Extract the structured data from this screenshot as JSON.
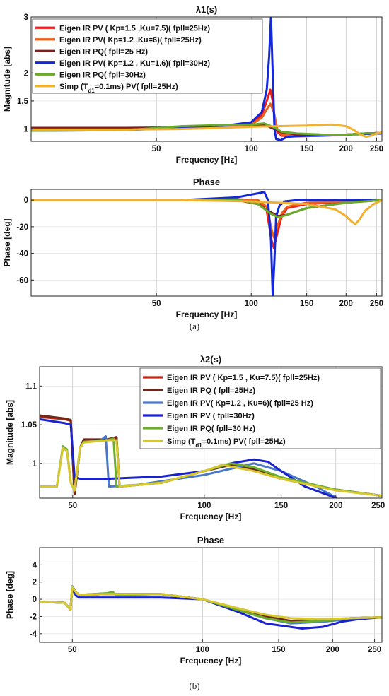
{
  "captions": {
    "a": "(a)",
    "b": "(b)"
  },
  "chart_data": [
    {
      "type": "line",
      "title": "λ1(s)",
      "xlabel": "Frequency [Hz]",
      "ylabel": "Magnitude [abs]",
      "xscale": "log",
      "xlim": [
        20,
        260
      ],
      "ylim": [
        0.78,
        3
      ],
      "xticks": [
        50,
        100,
        150,
        200,
        250
      ],
      "yticks": [
        1,
        1.5,
        2,
        3
      ],
      "yticklabels": [
        "1",
        "1.5",
        "2",
        "3"
      ],
      "legend_position": "top-left",
      "series": [
        {
          "name": "Eigen IR PV ( Kp=1.5 ,Ku=7.5)( fpll=25Hz)",
          "color": "#ee1c1c",
          "x": [
            20,
            40,
            60,
            80,
            100,
            108,
            112,
            115,
            117,
            119,
            121,
            125,
            140,
            170,
            200,
            230,
            260
          ],
          "y": [
            1.0,
            1.0,
            1.03,
            1.05,
            1.1,
            1.25,
            1.5,
            1.7,
            1.5,
            1.1,
            0.95,
            0.88,
            0.87,
            0.88,
            0.9,
            0.92,
            0.93
          ]
        },
        {
          "name": "Eigen IR PV( Kp=1.2 ,Ku=6)( fpll=25Hz)",
          "color": "#e8601c",
          "x": [
            20,
            40,
            60,
            80,
            100,
            108,
            112,
            115,
            118,
            121,
            125,
            140,
            170,
            200,
            230,
            260
          ],
          "y": [
            1.0,
            1.0,
            1.02,
            1.05,
            1.08,
            1.2,
            1.35,
            1.45,
            1.3,
            1.0,
            0.9,
            0.87,
            0.88,
            0.9,
            0.92,
            0.93
          ]
        },
        {
          "name": "Eigen IR PQ( fpll=25 Hz)",
          "color": "#8b1a1a",
          "x": [
            20,
            40,
            60,
            80,
            100,
            110,
            118,
            125,
            140,
            170,
            200,
            230,
            260
          ],
          "y": [
            1.02,
            1.02,
            1.03,
            1.04,
            1.06,
            1.08,
            1.0,
            0.94,
            0.9,
            0.89,
            0.9,
            0.92,
            0.93
          ]
        },
        {
          "name": "Eigen  IR  PV( Kp=1.2 , Ku=1.6)( fpll=30Hz)",
          "color": "#1428d8",
          "x": [
            20,
            40,
            60,
            80,
            100,
            108,
            112,
            114,
            115.5,
            117,
            118.5,
            120,
            124,
            130,
            150,
            200,
            260
          ],
          "y": [
            0.97,
            0.98,
            1.02,
            1.05,
            1.12,
            1.3,
            1.7,
            2.3,
            3.0,
            2.0,
            1.0,
            0.82,
            0.8,
            0.86,
            0.88,
            0.9,
            0.92
          ]
        },
        {
          "name": "Eigen  IR  PQ( fpll=30Hz)",
          "color": "#6aaa2a",
          "x": [
            20,
            40,
            60,
            80,
            100,
            110,
            118,
            125,
            140,
            170,
            200,
            230,
            260
          ],
          "y": [
            0.97,
            0.98,
            1.05,
            1.07,
            1.08,
            1.1,
            1.03,
            0.95,
            0.92,
            0.9,
            0.9,
            0.92,
            0.93
          ]
        },
        {
          "name": "Simp (T_d1=0.1ms) PV( fpll=25Hz)",
          "color": "#f0b030",
          "x": [
            20,
            40,
            60,
            80,
            100,
            120,
            150,
            180,
            200,
            212,
            222,
            232,
            240,
            250,
            260
          ],
          "y": [
            0.99,
            0.99,
            1.0,
            1.02,
            1.04,
            1.05,
            1.06,
            1.08,
            1.05,
            0.98,
            0.9,
            0.86,
            0.88,
            0.92,
            0.94
          ]
        }
      ]
    },
    {
      "type": "line",
      "title": "Phase",
      "xlabel": "Frequency [Hz]",
      "ylabel": "Phase [deg]",
      "xscale": "log",
      "xlim": [
        20,
        260
      ],
      "ylim": [
        -72,
        8
      ],
      "xticks": [
        50,
        100,
        150,
        200,
        250
      ],
      "yticks": [
        0,
        -20,
        -40,
        -60
      ],
      "series": [
        {
          "name": "Eigen IR PV ( Kp=1.5 ,Ku=7.5)( fpll=25Hz)",
          "color": "#ee1c1c",
          "x": [
            20,
            60,
            90,
            105,
            112,
            116,
            118,
            121,
            125,
            130,
            150,
            200,
            260
          ],
          "y": [
            0,
            0,
            0.5,
            0,
            -8,
            -30,
            -36,
            -25,
            -12,
            -6,
            -3,
            -1,
            0
          ]
        },
        {
          "name": "Eigen IR PV( Kp=1.2 ,Ku=6)( fpll=25Hz)",
          "color": "#e8601c",
          "x": [
            20,
            60,
            90,
            105,
            112,
            116,
            118,
            121,
            125,
            130,
            150,
            200,
            260
          ],
          "y": [
            0,
            0,
            0.5,
            0,
            -5,
            -22,
            -28,
            -20,
            -10,
            -5,
            -2,
            -1,
            0
          ]
        },
        {
          "name": "Eigen IR PQ( fpll=25 Hz)",
          "color": "#8b1a1a",
          "x": [
            20,
            60,
            90,
            105,
            115,
            122,
            130,
            150,
            200,
            260
          ],
          "y": [
            0,
            0,
            0,
            -3,
            -9,
            -12,
            -11,
            -6,
            -2,
            0
          ]
        },
        {
          "name": "Eigen  IR  PV( Kp=1.2 , Ku=1.6)( fpll=30Hz)",
          "color": "#1428d8",
          "x": [
            20,
            60,
            90,
            105,
            110,
            113,
            115.5,
            117,
            118.5,
            120,
            123,
            128,
            140,
            200,
            260
          ],
          "y": [
            0,
            0,
            2,
            5,
            6,
            0,
            -30,
            -72,
            -45,
            -12,
            -4,
            -1,
            0,
            0,
            0
          ]
        },
        {
          "name": "Eigen  IR  PQ( fpll=30Hz)",
          "color": "#6aaa2a",
          "x": [
            20,
            60,
            90,
            105,
            115,
            122,
            130,
            150,
            200,
            260
          ],
          "y": [
            0,
            0,
            0.5,
            -3,
            -10,
            -13,
            -11,
            -6,
            -2,
            0
          ]
        },
        {
          "name": "Simp (T_d1=0.1ms) PV( fpll=25Hz)",
          "color": "#f0b030",
          "x": [
            20,
            60,
            100,
            150,
            185,
            200,
            208,
            214,
            220,
            230,
            245,
            260
          ],
          "y": [
            0,
            0,
            -1,
            -3,
            -7,
            -12,
            -16,
            -18,
            -15,
            -8,
            -3,
            0
          ]
        }
      ]
    },
    {
      "type": "line",
      "title": "λ2(s)",
      "xlabel": "Frequency [Hz]",
      "ylabel": "Magnitude [abs]",
      "xscale": "log",
      "xlim": [
        42,
        255
      ],
      "ylim": [
        0.955,
        1.125
      ],
      "xticks": [
        50,
        100,
        150,
        200,
        250
      ],
      "yticks": [
        1,
        1.05,
        1.1
      ],
      "yticklabels": [
        "1",
        "1.05",
        "1.1"
      ],
      "legend_position": "top-right",
      "series": [
        {
          "name": "Eigen  IR PV ( Kp=1.5 , Ku=7.5)( fpll=25Hz)",
          "color": "#c0281c",
          "x": [
            42,
            48,
            49.5,
            50.5,
            52,
            53,
            60,
            63,
            64,
            80,
            100,
            115,
            130,
            150,
            200,
            255
          ],
          "y": [
            1.06,
            1.057,
            1.055,
            0.96,
            1.02,
            1.03,
            1.03,
            1.033,
            0.97,
            0.975,
            0.99,
            0.998,
            0.99,
            0.98,
            0.966,
            0.958
          ]
        },
        {
          "name": "Eigen   IR PQ ( fpll=25Hz)",
          "color": "#6e2818",
          "x": [
            42,
            48,
            49.5,
            50.5,
            52,
            53,
            60,
            63,
            64,
            80,
            100,
            115,
            130,
            150,
            200,
            255
          ],
          "y": [
            1.062,
            1.058,
            1.056,
            0.96,
            1.02,
            1.031,
            1.031,
            1.034,
            0.97,
            0.975,
            0.99,
            0.998,
            0.992,
            0.98,
            0.966,
            0.958
          ]
        },
        {
          "name": "Eigen   IR PV( Kp=1.2 , Ku=6)( fpll=25 Hz)",
          "color": "#4a78c8",
          "x": [
            42,
            46,
            47.5,
            48.5,
            49.5,
            50.5,
            52,
            53,
            58,
            59.5,
            60.5,
            70,
            100,
            130,
            150,
            180,
            200
          ],
          "y": [
            0.97,
            0.97,
            1.022,
            1.018,
            0.975,
            0.965,
            1.02,
            1.027,
            1.03,
            1.035,
            0.97,
            0.972,
            0.985,
            1.0,
            0.99,
            0.97,
            0.956
          ]
        },
        {
          "name": "Eigen IR PV ( fpll=30Hz)",
          "color": "#1a22cc",
          "x": [
            42,
            48,
            49.5,
            50.5,
            52,
            60,
            80,
            100,
            115,
            130,
            140,
            150,
            170,
            190,
            200
          ],
          "y": [
            1.057,
            1.052,
            1.05,
            0.982,
            0.98,
            0.98,
            0.983,
            0.99,
            1.0,
            1.005,
            1.002,
            0.99,
            0.97,
            0.96,
            0.955
          ]
        },
        {
          "name": "Eigen IR PQ( fpll=30 Hz)",
          "color": "#6cae2c",
          "x": [
            42,
            46,
            47.5,
            48.5,
            49.5,
            50.5,
            52,
            53,
            60,
            62,
            63,
            80,
            100,
            115,
            130,
            150,
            200,
            255
          ],
          "y": [
            0.97,
            0.97,
            1.022,
            1.018,
            0.975,
            0.965,
            1.02,
            1.028,
            1.03,
            1.032,
            0.97,
            0.975,
            0.99,
            1.0,
            0.995,
            0.982,
            0.966,
            0.958
          ]
        },
        {
          "name": "Simp (T_d1=0.1ms) PV( fpll=25Hz)",
          "color": "#d8c830",
          "x": [
            42,
            46,
            47.5,
            48.5,
            49.5,
            50.5,
            52,
            53,
            60,
            63,
            64,
            80,
            100,
            110,
            130,
            150,
            200,
            255
          ],
          "y": [
            0.97,
            0.97,
            1.02,
            1.016,
            0.975,
            0.965,
            1.02,
            1.027,
            1.03,
            1.03,
            0.97,
            0.975,
            0.99,
            0.998,
            0.99,
            0.98,
            0.965,
            0.958
          ]
        }
      ]
    },
    {
      "type": "line",
      "title": "Phase",
      "xlabel": "Frequency [Hz]",
      "ylabel": "Phase [deg]",
      "xscale": "log",
      "xlim": [
        42,
        260
      ],
      "ylim": [
        -5,
        6
      ],
      "xticks": [
        50,
        100,
        150,
        200,
        250
      ],
      "yticks": [
        4,
        2,
        0,
        -2,
        -4
      ],
      "series": [
        {
          "name": "Eigen  IR PV ( Kp=1.5 , Ku=7.5)( fpll=25Hz)",
          "color": "#c0281c",
          "x": [
            42,
            48,
            49.5,
            50,
            51,
            52,
            60,
            80,
            100,
            120,
            140,
            160,
            190,
            220,
            260
          ],
          "y": [
            -0.3,
            -0.4,
            -1.2,
            1.5,
            0.8,
            0.5,
            0.6,
            0.6,
            0,
            -1.2,
            -2.2,
            -2.7,
            -2.5,
            -2.2,
            -2.1
          ]
        },
        {
          "name": "Eigen   IR PQ ( fpll=25Hz)",
          "color": "#6e2818",
          "x": [
            42,
            48,
            49.5,
            50,
            51,
            52,
            60,
            80,
            100,
            120,
            140,
            160,
            190,
            220,
            260
          ],
          "y": [
            -0.3,
            -0.4,
            -1.2,
            1.4,
            0.8,
            0.5,
            0.6,
            0.6,
            0,
            -1.1,
            -2.0,
            -2.5,
            -2.4,
            -2.2,
            -2.1
          ]
        },
        {
          "name": "Eigen   IR PV( Kp=1.2 , Ku=6)( fpll=25 Hz)",
          "color": "#4a78c8",
          "x": [
            42,
            48,
            49.5,
            50,
            51,
            52,
            60,
            62,
            63,
            80,
            100,
            120,
            140,
            160,
            190,
            220,
            260
          ],
          "y": [
            -0.3,
            -0.4,
            -1.2,
            1.5,
            0.8,
            0.5,
            0.7,
            0.8,
            0.5,
            0.6,
            0,
            -1.2,
            -2.2,
            -2.8,
            -2.6,
            -2.3,
            -2.1
          ]
        },
        {
          "name": "Eigen IR PV ( fpll=30Hz)",
          "color": "#1a22cc",
          "x": [
            42,
            48,
            49.5,
            50,
            51,
            52,
            60,
            80,
            100,
            120,
            140,
            170,
            190,
            210,
            230,
            260
          ],
          "y": [
            -0.3,
            -0.4,
            -1.2,
            1.2,
            0.4,
            0.2,
            0.2,
            0.2,
            0,
            -1.4,
            -2.8,
            -3.4,
            -3.2,
            -2.6,
            -2.3,
            -2.1
          ]
        },
        {
          "name": "Eigen IR PQ( fpll=30 Hz)",
          "color": "#6cae2c",
          "x": [
            42,
            48,
            49.5,
            50,
            51,
            52,
            60,
            62,
            63,
            80,
            100,
            120,
            140,
            160,
            190,
            220,
            260
          ],
          "y": [
            -0.3,
            -0.4,
            -1.2,
            1.4,
            0.8,
            0.5,
            0.7,
            0.85,
            0.5,
            0.6,
            0,
            -1.2,
            -2.2,
            -2.7,
            -2.5,
            -2.2,
            -2.1
          ]
        },
        {
          "name": "Simp (T_d1=0.1ms) PV( fpll=25Hz)",
          "color": "#d8c830",
          "x": [
            42,
            48,
            49.5,
            50,
            51,
            52,
            60,
            80,
            100,
            120,
            140,
            160,
            190,
            220,
            260
          ],
          "y": [
            -0.3,
            -0.4,
            -1.2,
            1.4,
            0.8,
            0.5,
            0.6,
            0.6,
            0,
            -1.0,
            -1.8,
            -2.2,
            -2.3,
            -2.2,
            -2.1
          ]
        }
      ]
    }
  ]
}
